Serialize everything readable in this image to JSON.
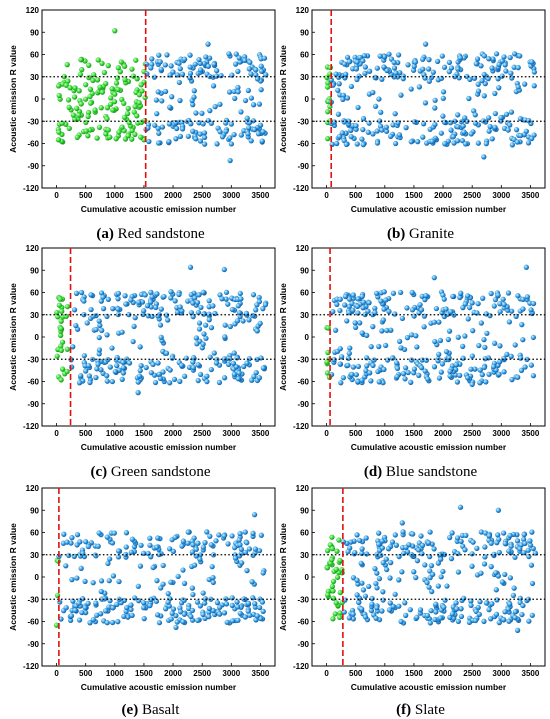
{
  "chart_data": [
    {
      "type": "scatter",
      "caption": {
        "letter": "(a)",
        "name": "Red sandstone"
      },
      "xlabel": "Cumulative acoustic emission number",
      "ylabel": "Acoustic emission R value",
      "xlim": [
        -250,
        3750
      ],
      "ylim": [
        -120,
        120
      ],
      "xticks": [
        0,
        500,
        1000,
        1500,
        2000,
        2500,
        3000,
        3500
      ],
      "yticks": [
        -120,
        -90,
        -60,
        -30,
        0,
        30,
        60,
        90,
        120
      ],
      "thresholds": [
        30,
        -30
      ],
      "split_x": 1530,
      "seed": 11,
      "series": [
        {
          "color": "#33dd33",
          "x_range": [
            0,
            1530
          ],
          "count": 160,
          "spread": "full"
        },
        {
          "color": "#2f9fe8",
          "x_range": [
            1530,
            3600
          ],
          "count": 200,
          "spread": "bimodal"
        }
      ],
      "extremes": [
        [
          1000,
          92
        ],
        [
          2980,
          -83
        ],
        [
          2600,
          74
        ]
      ]
    },
    {
      "type": "scatter",
      "caption": {
        "letter": "(b)",
        "name": "Granite"
      },
      "xlabel": "Cumulative acoustic emission number",
      "ylabel": "Acoustic emission R value",
      "xlim": [
        -250,
        3750
      ],
      "ylim": [
        -120,
        120
      ],
      "xticks": [
        0,
        500,
        1000,
        1500,
        2000,
        2500,
        3000,
        3500
      ],
      "yticks": [
        -120,
        -90,
        -60,
        -30,
        0,
        30,
        60,
        90,
        120
      ],
      "thresholds": [
        30,
        -30
      ],
      "split_x": 80,
      "seed": 23,
      "series": [
        {
          "color": "#33dd33",
          "x_range": [
            0,
            80
          ],
          "count": 14,
          "spread": "full"
        },
        {
          "color": "#2f9fe8",
          "x_range": [
            80,
            3600
          ],
          "count": 330,
          "spread": "bimodal"
        }
      ],
      "extremes": [
        [
          1700,
          74
        ],
        [
          2700,
          -78
        ]
      ]
    },
    {
      "type": "scatter",
      "caption": {
        "letter": "(c)",
        "name": "Green sandstone"
      },
      "xlabel": "Cumulative acoustic emission number",
      "ylabel": "Acoustic emission R value",
      "xlim": [
        -250,
        3750
      ],
      "ylim": [
        -120,
        120
      ],
      "xticks": [
        0,
        500,
        1000,
        1500,
        2000,
        2500,
        3000,
        3500
      ],
      "yticks": [
        -120,
        -90,
        -60,
        -30,
        0,
        30,
        60,
        90,
        120
      ],
      "thresholds": [
        30,
        -30
      ],
      "split_x": 240,
      "seed": 37,
      "series": [
        {
          "color": "#33dd33",
          "x_range": [
            0,
            240
          ],
          "count": 30,
          "spread": "full"
        },
        {
          "color": "#2f9fe8",
          "x_range": [
            240,
            3600
          ],
          "count": 320,
          "spread": "bimodal"
        }
      ],
      "extremes": [
        [
          2300,
          94
        ],
        [
          2880,
          91
        ],
        [
          1400,
          -75
        ]
      ]
    },
    {
      "type": "scatter",
      "caption": {
        "letter": "(d)",
        "name": "Blue sandstone"
      },
      "xlabel": "Cumulative acoustic emission number",
      "ylabel": "Acoustic emission R value",
      "xlim": [
        -250,
        3750
      ],
      "ylim": [
        -120,
        120
      ],
      "xticks": [
        0,
        500,
        1000,
        1500,
        2000,
        2500,
        3000,
        3500
      ],
      "yticks": [
        -120,
        -90,
        -60,
        -30,
        0,
        30,
        60,
        90,
        120
      ],
      "thresholds": [
        30,
        -30
      ],
      "split_x": 60,
      "seed": 53,
      "series": [
        {
          "color": "#33dd33",
          "x_range": [
            0,
            60
          ],
          "count": 8,
          "spread": "full"
        },
        {
          "color": "#2f9fe8",
          "x_range": [
            60,
            3600
          ],
          "count": 330,
          "spread": "bimodal"
        }
      ],
      "extremes": [
        [
          3430,
          94
        ],
        [
          1850,
          80
        ],
        [
          2500,
          -64
        ]
      ]
    },
    {
      "type": "scatter",
      "caption": {
        "letter": "(e)",
        "name": "Basalt"
      },
      "xlabel": "Cumulative acoustic emission number",
      "ylabel": "Acoustic emission R value",
      "xlim": [
        -250,
        3750
      ],
      "ylim": [
        -120,
        120
      ],
      "xticks": [
        0,
        500,
        1000,
        1500,
        2000,
        2500,
        3000,
        3500
      ],
      "yticks": [
        -120,
        -90,
        -60,
        -30,
        0,
        30,
        60,
        90,
        120
      ],
      "thresholds": [
        30,
        -30
      ],
      "split_x": 40,
      "seed": 71,
      "series": [
        {
          "color": "#33dd33",
          "x_range": [
            0,
            40
          ],
          "count": 3,
          "spread": "full"
        },
        {
          "color": "#2f9fe8",
          "x_range": [
            40,
            3600
          ],
          "count": 330,
          "spread": "bimodal"
        }
      ],
      "extremes": [
        [
          3400,
          84
        ],
        [
          0,
          -65
        ],
        [
          2050,
          -68
        ]
      ]
    },
    {
      "type": "scatter",
      "caption": {
        "letter": "(f)",
        "name": "Slate"
      },
      "xlabel": "Cumulative acoustic emission number",
      "ylabel": "Acoustic emission R value",
      "xlim": [
        -250,
        3750
      ],
      "ylim": [
        -120,
        120
      ],
      "xticks": [
        0,
        500,
        1000,
        1500,
        2000,
        2500,
        3000,
        3500
      ],
      "yticks": [
        -120,
        -90,
        -60,
        -30,
        0,
        30,
        60,
        90,
        120
      ],
      "thresholds": [
        30,
        -30
      ],
      "split_x": 280,
      "seed": 89,
      "series": [
        {
          "color": "#33dd33",
          "x_range": [
            0,
            280
          ],
          "count": 40,
          "spread": "full"
        },
        {
          "color": "#2f9fe8",
          "x_range": [
            280,
            3600
          ],
          "count": 320,
          "spread": "bimodal"
        }
      ],
      "extremes": [
        [
          2300,
          94
        ],
        [
          2950,
          90
        ],
        [
          1300,
          73
        ],
        [
          3280,
          -72
        ]
      ]
    }
  ]
}
